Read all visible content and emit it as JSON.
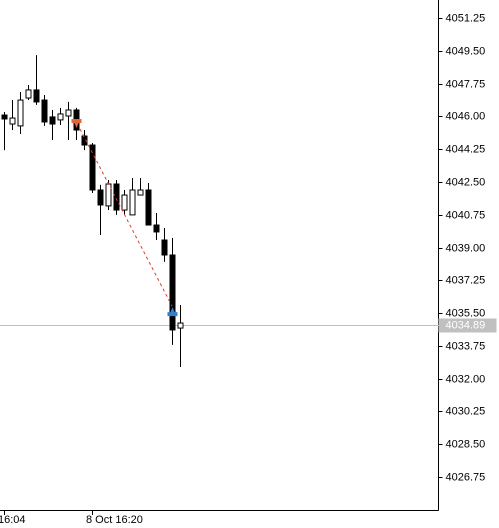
{
  "chart_data": {
    "type": "candlestick",
    "categories": [
      "16:04",
      null,
      null,
      null,
      null,
      null,
      null,
      null,
      null,
      null,
      null,
      "8 Oct 16:20",
      null,
      null,
      null,
      null,
      null,
      null,
      null,
      null,
      null,
      null,
      null
    ],
    "open": [
      4046.07,
      4045.59,
      4045.49,
      4046.98,
      4047.41,
      4046.87,
      4045.97,
      4045.81,
      4046.02,
      4046.34,
      4044.95,
      4044.47,
      4042.07,
      4041.22,
      4042.39,
      4041.0,
      4040.74,
      4041.8,
      4042.07,
      4040.2,
      4039.4,
      4038.6,
      4034.7
    ],
    "high": [
      4046.23,
      4046.87,
      4047.3,
      4047.67,
      4049.27,
      4047.14,
      4046.34,
      4046.45,
      4046.77,
      4046.45,
      4045.27,
      4044.58,
      4042.34,
      4042.6,
      4042.6,
      4042.07,
      4042.71,
      4042.71,
      4042.44,
      4040.84,
      4040.04,
      4039.51,
      4035.93
    ],
    "low": [
      4044.2,
      4045.27,
      4045.06,
      4046.87,
      4046.61,
      4045.49,
      4044.74,
      4045.54,
      4044.74,
      4044.74,
      4044.2,
      4041.91,
      4039.67,
      4041.0,
      4040.74,
      4040.74,
      4040.74,
      4041.8,
      4040.2,
      4039.4,
      4038.23,
      4033.8,
      4032.62
    ],
    "close": [
      4045.86,
      4045.91,
      4046.87,
      4047.41,
      4046.77,
      4045.7,
      4045.59,
      4046.13,
      4046.34,
      4045.27,
      4044.47,
      4042.07,
      4041.27,
      4042.39,
      4041.0,
      4041.8,
      4042.07,
      4042.07,
      4040.2,
      4039.83,
      4038.6,
      4034.6,
      4034.97
    ],
    "ylim": [
      4024.99,
      4052.21
    ],
    "yticks": [
      4051.25,
      {
        "value": 4049.5,
        "label": "4049.50"
      },
      4047.75,
      {
        "value": 4046,
        "label": "4046.00"
      },
      4044.25,
      {
        "value": 4042.5,
        "label": "4042.50"
      },
      4040.75,
      {
        "value": 4039,
        "label": "4039.00"
      },
      4037.25,
      {
        "value": 4035.5,
        "label": "4035.50"
      },
      4033.75,
      {
        "value": 4032,
        "label": "4032.00"
      },
      4030.25,
      {
        "value": 4028.5,
        "label": "4028.50"
      },
      4026.75
    ],
    "current_price": 4034.89,
    "markers": [
      {
        "type": "sell",
        "category_index": 9,
        "price": 4045.54,
        "color": "#e0663c"
      },
      {
        "type": "buy",
        "category_index": 21,
        "price": 4035.66,
        "color": "#2f80d0"
      }
    ],
    "trade_line_color": "#e03a2a"
  }
}
